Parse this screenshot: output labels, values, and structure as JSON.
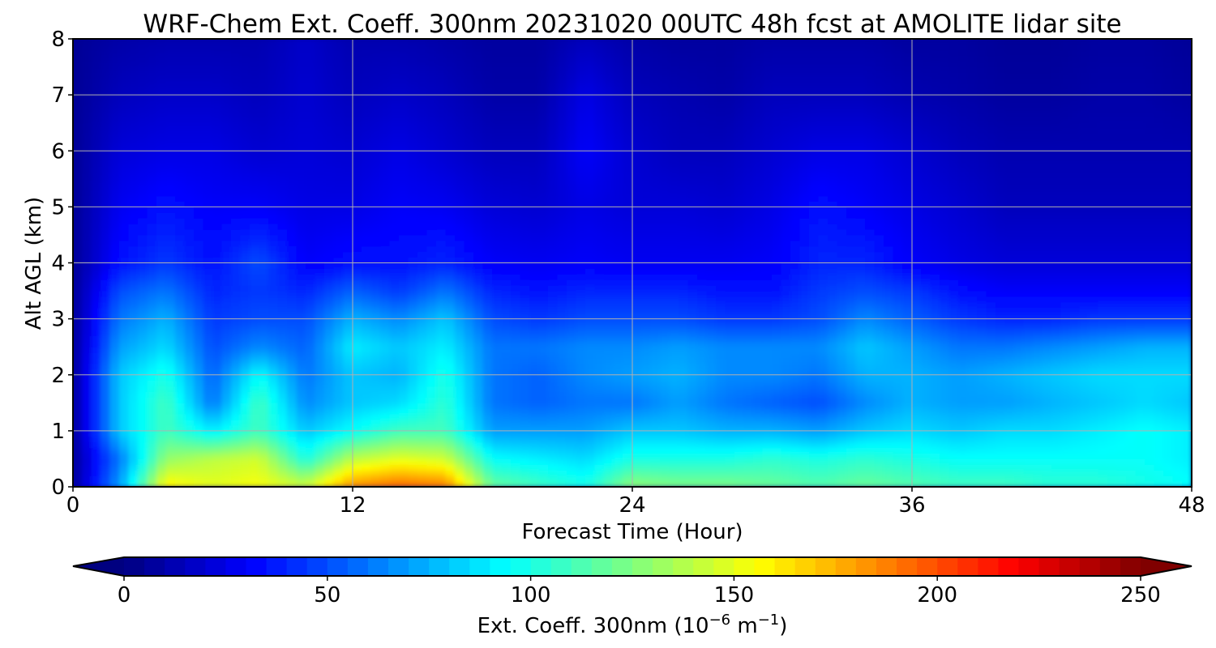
{
  "chart_data": {
    "type": "heatmap",
    "title": "WRF-Chem Ext. Coeff. 300nm  20231020 00UTC 48h fcst at AMOLITE lidar site",
    "xlabel": "Forecast Time (Hour)",
    "ylabel": "Alt AGL (km)",
    "xlim": [
      0,
      48
    ],
    "ylim": [
      0,
      8
    ],
    "x_ticks": [
      "0",
      "12",
      "24",
      "36",
      "48"
    ],
    "y_ticks": [
      "0",
      "1",
      "2",
      "3",
      "4",
      "5",
      "6",
      "7",
      "8"
    ],
    "grid": true,
    "colormap": "jet",
    "colorbar": {
      "label_main": "Ext. Coeff. 300nm  (10",
      "label_exp1": "−6",
      "label_mid": " m",
      "label_exp2": "−1",
      "label_end": ")",
      "range": [
        0,
        250
      ],
      "ticks": [
        "0",
        "50",
        "100",
        "150",
        "200",
        "250"
      ],
      "extend": "both",
      "placement": "bottom"
    },
    "forecast_hours": [
      0,
      2,
      4,
      6,
      8,
      10,
      12,
      14,
      16,
      18,
      20,
      22,
      24,
      26,
      28,
      30,
      32,
      34,
      36,
      38,
      40,
      42,
      44,
      46,
      48
    ],
    "altitudes_km": [
      0,
      0.5,
      1,
      1.5,
      2,
      2.5,
      3,
      3.5,
      4,
      5,
      6,
      7,
      8
    ],
    "values": [
      [
        5,
        70,
        160,
        150,
        155,
        145,
        185,
        195,
        190,
        120,
        110,
        100,
        130,
        125,
        125,
        120,
        115,
        120,
        115,
        110,
        110,
        105,
        105,
        100,
        95
      ],
      [
        5,
        60,
        130,
        140,
        145,
        100,
        140,
        150,
        145,
        95,
        90,
        85,
        100,
        100,
        100,
        105,
        100,
        105,
        100,
        95,
        95,
        95,
        95,
        95,
        90
      ],
      [
        5,
        80,
        110,
        90,
        110,
        80,
        95,
        110,
        110,
        70,
        70,
        70,
        80,
        80,
        75,
        75,
        70,
        80,
        85,
        80,
        85,
        85,
        90,
        95,
        90
      ],
      [
        5,
        80,
        110,
        60,
        110,
        65,
        80,
        85,
        105,
        60,
        55,
        60,
        60,
        70,
        60,
        55,
        50,
        65,
        75,
        70,
        70,
        75,
        80,
        85,
        80
      ],
      [
        5,
        80,
        100,
        55,
        95,
        60,
        80,
        75,
        100,
        60,
        55,
        65,
        70,
        75,
        65,
        65,
        60,
        75,
        75,
        70,
        75,
        80,
        85,
        85,
        85
      ],
      [
        5,
        70,
        85,
        50,
        65,
        55,
        90,
        80,
        90,
        60,
        60,
        65,
        65,
        70,
        65,
        65,
        65,
        80,
        70,
        60,
        60,
        65,
        70,
        75,
        75
      ],
      [
        5,
        60,
        75,
        45,
        50,
        50,
        75,
        65,
        80,
        50,
        45,
        50,
        50,
        50,
        45,
        45,
        50,
        65,
        55,
        45,
        40,
        40,
        45,
        45,
        45
      ],
      [
        5,
        50,
        60,
        40,
        45,
        40,
        55,
        45,
        60,
        40,
        35,
        40,
        40,
        40,
        35,
        35,
        45,
        50,
        45,
        35,
        30,
        30,
        30,
        30,
        30
      ],
      [
        5,
        35,
        45,
        35,
        50,
        30,
        35,
        35,
        40,
        30,
        28,
        30,
        28,
        28,
        28,
        30,
        40,
        40,
        30,
        25,
        22,
        22,
        22,
        22,
        22
      ],
      [
        5,
        28,
        35,
        30,
        30,
        25,
        25,
        30,
        28,
        22,
        20,
        25,
        22,
        22,
        20,
        25,
        35,
        30,
        25,
        20,
        15,
        15,
        15,
        15,
        15
      ],
      [
        5,
        22,
        25,
        25,
        20,
        22,
        20,
        25,
        20,
        15,
        15,
        30,
        20,
        15,
        15,
        20,
        25,
        25,
        20,
        15,
        12,
        12,
        12,
        12,
        12
      ],
      [
        5,
        15,
        18,
        18,
        15,
        20,
        15,
        18,
        15,
        10,
        10,
        25,
        15,
        12,
        10,
        15,
        15,
        15,
        12,
        10,
        8,
        8,
        10,
        10,
        8
      ],
      [
        5,
        10,
        12,
        12,
        12,
        18,
        12,
        12,
        10,
        8,
        8,
        15,
        10,
        8,
        8,
        10,
        10,
        10,
        8,
        8,
        6,
        6,
        8,
        8,
        6
      ]
    ]
  }
}
